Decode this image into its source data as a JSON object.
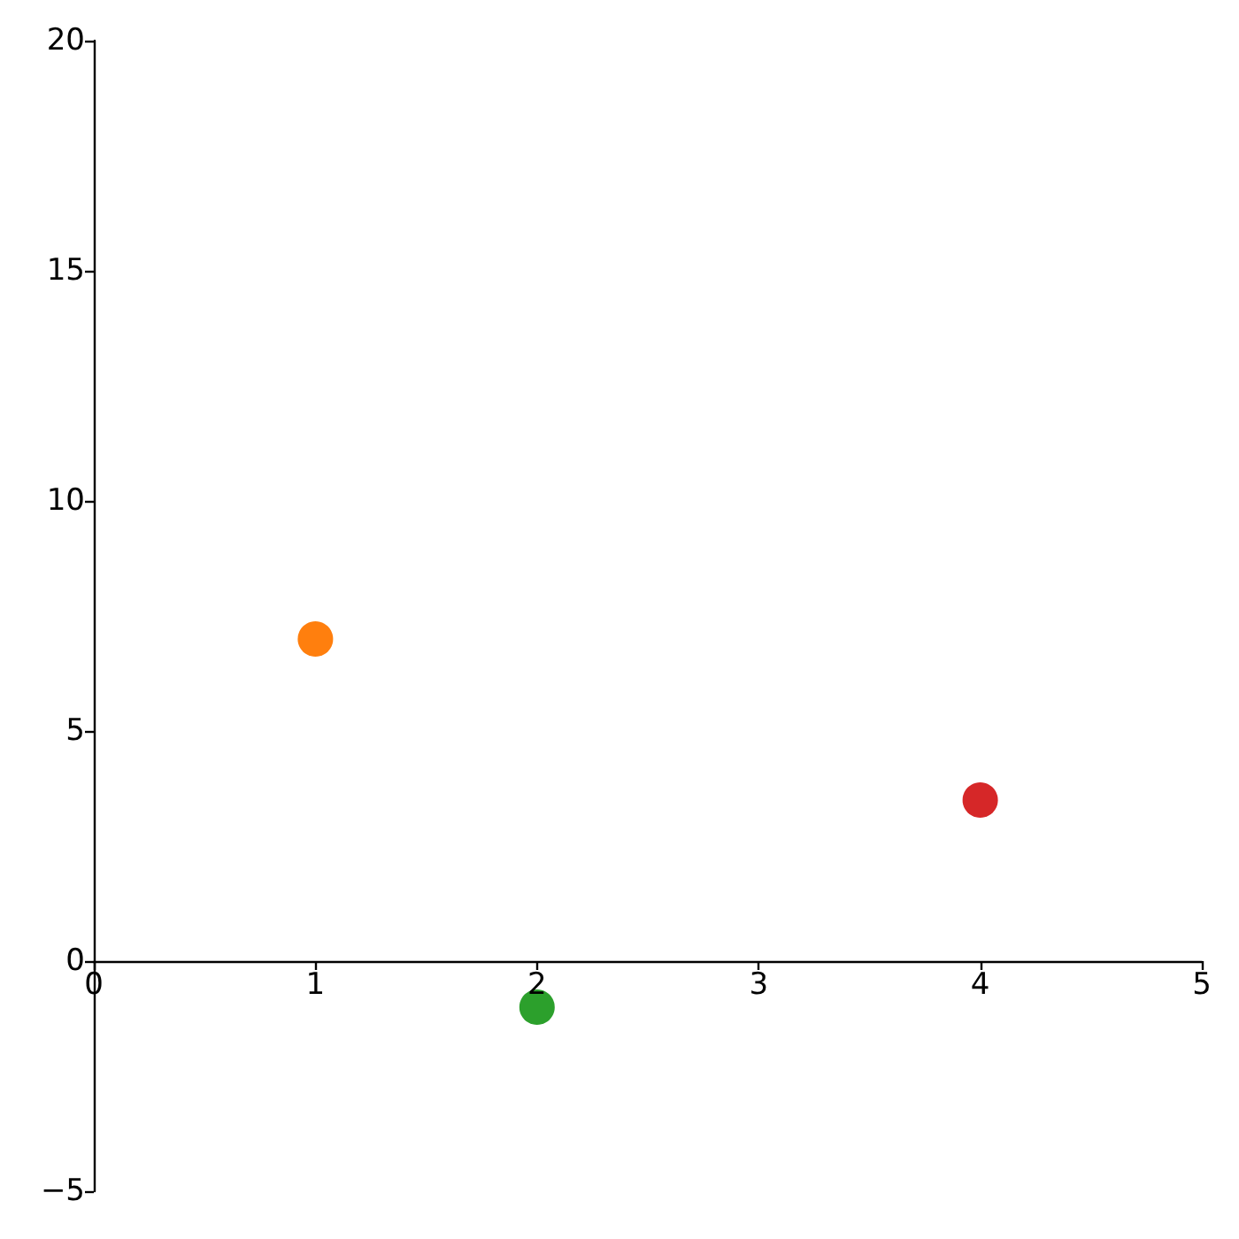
{
  "chart_data": {
    "type": "scatter",
    "x": [
      1,
      2,
      4
    ],
    "values": [
      7,
      -1,
      3.5
    ],
    "colors": [
      "#ff7f0e",
      "#2ca02c",
      "#d62728"
    ],
    "xlim": [
      0,
      5
    ],
    "xticks": [
      0,
      1,
      2,
      3,
      4,
      5
    ],
    "ylim": [
      -5,
      20
    ],
    "yticks": [
      {
        "value": -5,
        "label": "−5"
      },
      0,
      5,
      10,
      15,
      20
    ],
    "marker": "circle"
  }
}
